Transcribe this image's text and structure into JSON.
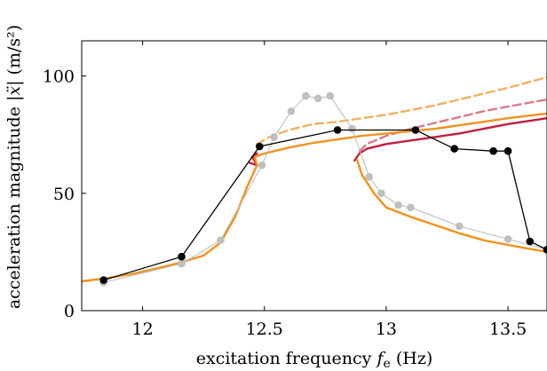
{
  "chart_data": {
    "type": "line",
    "title": "",
    "xlabel": "excitation frequency f_e (Hz)",
    "ylabel": "acceleration magnitude |ẍ| (m/s²)",
    "xlim": [
      11.75,
      13.66
    ],
    "ylim": [
      0,
      115
    ],
    "grid": false,
    "legend": "none",
    "x_ticks": [
      12,
      12.5,
      13,
      13.5
    ],
    "x_tick_labels": [
      "12",
      "12.5",
      "13",
      "13.5"
    ],
    "y_ticks": [
      0,
      50,
      100
    ],
    "y_tick_labels": [
      "0",
      "50",
      "100"
    ],
    "series": [
      {
        "style": "dashed",
        "color": "#f2b060",
        "x": [
          12.47,
          12.52,
          12.6,
          12.7,
          12.8,
          12.9,
          13.0,
          13.1,
          13.2,
          13.3,
          13.4,
          13.5,
          13.66
        ],
        "y": [
          71,
          74,
          77,
          79.5,
          80.5,
          82,
          83.5,
          85.5,
          87.5,
          90,
          92.5,
          95,
          99.5
        ]
      },
      {
        "style": "dashed",
        "color": "#d97a8a",
        "x": [
          12.89,
          12.92,
          13.0,
          13.1,
          13.2,
          13.3,
          13.4,
          13.5,
          13.66
        ],
        "y": [
          68,
          71,
          74.5,
          77.5,
          80,
          82.5,
          85,
          87,
          90
        ]
      },
      {
        "style": "solid",
        "color": "#c01f3f",
        "x": [
          12.44,
          12.47,
          12.45,
          12.47
        ],
        "y": [
          63,
          62,
          65.5,
          67
        ]
      },
      {
        "style": "solid",
        "color": "#c01f3f",
        "x": [
          12.87,
          12.89,
          12.92,
          13.0,
          13.1,
          13.2,
          13.3,
          13.4,
          13.5,
          13.66
        ],
        "y": [
          64,
          67,
          69,
          71,
          72.5,
          74,
          75.5,
          77.5,
          79.5,
          82
        ]
      },
      {
        "style": "solid",
        "color": "#f0921e",
        "x": [
          11.75,
          11.85,
          11.95,
          12.05,
          12.15,
          12.25,
          12.32,
          12.38,
          12.43,
          12.47,
          12.46,
          12.5,
          12.6,
          12.7,
          12.8,
          12.9,
          13.0,
          13.1,
          13.2,
          13.3,
          13.4,
          13.5,
          13.66
        ],
        "y": [
          12.5,
          13.8,
          15.5,
          17.8,
          20.3,
          23.5,
          29,
          40,
          53,
          62,
          65.5,
          67,
          69.5,
          71.5,
          73,
          74.5,
          75.5,
          76.5,
          77.5,
          79,
          80.5,
          82,
          84
        ]
      },
      {
        "style": "solid",
        "color": "#f0921e",
        "x": [
          12.88,
          12.9,
          12.95,
          13.0,
          13.1,
          13.2,
          13.3,
          13.4,
          13.5,
          13.66
        ],
        "y": [
          64.5,
          58,
          50,
          44,
          40,
          36.5,
          33,
          30,
          28,
          25
        ]
      },
      {
        "style": "markers-line",
        "color": "#bfbfbf",
        "x": [
          11.84,
          12.16,
          12.32,
          12.49,
          12.54,
          12.61,
          12.67,
          12.72,
          12.77,
          12.86,
          12.93,
          12.98,
          13.05,
          13.1,
          13.3,
          13.5,
          13.66
        ],
        "y": [
          12,
          20,
          30,
          62,
          74,
          85,
          91.5,
          90.5,
          91.5,
          77.5,
          57,
          50,
          45,
          44,
          36,
          30.5,
          26
        ]
      },
      {
        "style": "markers-line",
        "color": "#000000",
        "x": [
          11.84,
          12.16,
          12.48,
          12.8,
          13.12,
          13.28,
          13.44,
          13.5,
          13.59,
          13.66
        ],
        "y": [
          13,
          23,
          70,
          77,
          77,
          69,
          68,
          68,
          29.5,
          26
        ]
      }
    ]
  }
}
